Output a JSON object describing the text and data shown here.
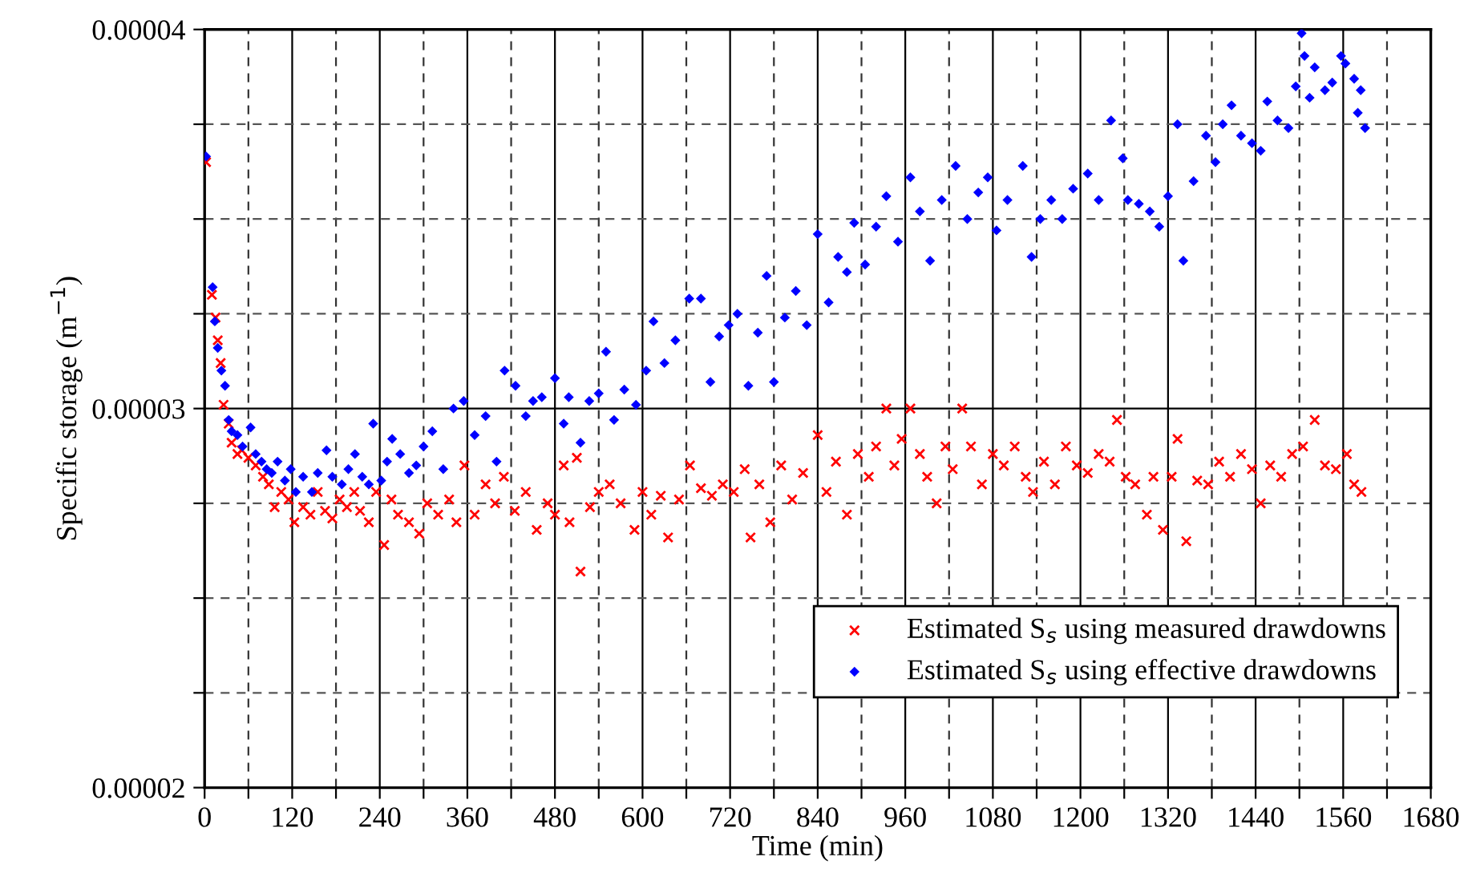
{
  "chart_data": {
    "type": "scatter",
    "xlabel": "Time (min)",
    "ylabel": "Specific storage (m$^{−1}$)",
    "xlim": [
      0,
      1680
    ],
    "ylim": [
      2e-05,
      4e-05
    ],
    "xticks": [
      0,
      {
        "value": 60,
        "label": null
      },
      120,
      {
        "value": 180,
        "label": null
      },
      240,
      {
        "value": 300,
        "label": null
      },
      360,
      {
        "value": 420,
        "label": null
      },
      480,
      {
        "value": 540,
        "label": null
      },
      600,
      {
        "value": 660,
        "label": null
      },
      720,
      {
        "value": 780,
        "label": null
      },
      840,
      {
        "value": 900,
        "label": null
      },
      960,
      {
        "value": 1020,
        "label": null
      },
      1080,
      {
        "value": 1140,
        "label": null
      },
      1200,
      {
        "value": 1260,
        "label": null
      },
      1320,
      {
        "value": 1380,
        "label": null
      },
      1440,
      {
        "value": 1500,
        "label": null
      },
      1560,
      {
        "value": 1620,
        "label": null
      },
      1680
    ],
    "yticks": [
      {
        "value": 2e-05,
        "label": "0.00002"
      },
      {
        "value": 2.25e-05,
        "label": null
      },
      {
        "value": 2.5e-05,
        "label": null
      },
      {
        "value": 2.75e-05,
        "label": null
      },
      {
        "value": 3e-05,
        "label": "0.00003"
      },
      {
        "value": 3.25e-05,
        "label": null
      },
      {
        "value": 3.5e-05,
        "label": null
      },
      {
        "value": 3.75e-05,
        "label": null
      },
      {
        "value": 4e-05,
        "label": "0.00004"
      }
    ],
    "grid": true,
    "legend": "bottom right",
    "series": [
      {
        "name": "Estimated S$_{s}$ using measured drawdowns",
        "color": "#ff0000",
        "marker": "cross",
        "x": [
          2,
          10,
          15,
          18,
          22,
          26,
          33,
          37,
          45,
          51,
          60,
          70,
          80,
          88,
          96,
          105,
          115,
          123,
          135,
          145,
          155,
          165,
          175,
          185,
          195,
          205,
          213,
          225,
          235,
          246,
          256,
          265,
          280,
          294,
          305,
          320,
          335,
          345,
          356,
          370,
          385,
          398,
          410,
          425,
          440,
          455,
          470,
          480,
          492,
          500,
          510,
          515,
          528,
          540,
          555,
          570,
          589,
          600,
          612,
          625,
          635,
          650,
          665,
          680,
          695,
          710,
          725,
          740,
          748,
          760,
          775,
          790,
          805,
          820,
          840,
          852,
          865,
          880,
          895,
          910,
          920,
          934,
          945,
          955,
          967,
          980,
          990,
          1003,
          1015,
          1025,
          1038,
          1050,
          1065,
          1080,
          1095,
          1110,
          1125,
          1135,
          1150,
          1165,
          1180,
          1195,
          1210,
          1225,
          1240,
          1250,
          1262,
          1275,
          1291,
          1300,
          1313,
          1325,
          1333,
          1345,
          1360,
          1375,
          1390,
          1405,
          1420,
          1435,
          1447,
          1460,
          1475,
          1490,
          1505,
          1521,
          1535,
          1550,
          1565,
          1575,
          1585
        ],
        "values": [
          3.65e-05,
          3.3e-05,
          3.24e-05,
          3.18e-05,
          3.12e-05,
          3.01e-05,
          2.96e-05,
          2.91e-05,
          2.88e-05,
          2.89e-05,
          2.87e-05,
          2.85e-05,
          2.82e-05,
          2.8e-05,
          2.74e-05,
          2.78e-05,
          2.76e-05,
          2.7e-05,
          2.74e-05,
          2.72e-05,
          2.78e-05,
          2.73e-05,
          2.71e-05,
          2.76e-05,
          2.74e-05,
          2.78e-05,
          2.73e-05,
          2.7e-05,
          2.78e-05,
          2.64e-05,
          2.76e-05,
          2.72e-05,
          2.7e-05,
          2.67e-05,
          2.75e-05,
          2.72e-05,
          2.76e-05,
          2.7e-05,
          2.85e-05,
          2.72e-05,
          2.8e-05,
          2.75e-05,
          2.82e-05,
          2.73e-05,
          2.78e-05,
          2.68e-05,
          2.75e-05,
          2.72e-05,
          2.85e-05,
          2.7e-05,
          2.87e-05,
          2.57e-05,
          2.74e-05,
          2.78e-05,
          2.8e-05,
          2.75e-05,
          2.68e-05,
          2.78e-05,
          2.72e-05,
          2.77e-05,
          2.66e-05,
          2.76e-05,
          2.85e-05,
          2.79e-05,
          2.77e-05,
          2.8e-05,
          2.78e-05,
          2.84e-05,
          2.66e-05,
          2.8e-05,
          2.7e-05,
          2.85e-05,
          2.76e-05,
          2.83e-05,
          2.93e-05,
          2.78e-05,
          2.86e-05,
          2.72e-05,
          2.88e-05,
          2.82e-05,
          2.9e-05,
          3e-05,
          2.85e-05,
          2.92e-05,
          3e-05,
          2.88e-05,
          2.82e-05,
          2.75e-05,
          2.9e-05,
          2.84e-05,
          3e-05,
          2.9e-05,
          2.8e-05,
          2.88e-05,
          2.85e-05,
          2.9e-05,
          2.82e-05,
          2.78e-05,
          2.86e-05,
          2.8e-05,
          2.9e-05,
          2.85e-05,
          2.83e-05,
          2.88e-05,
          2.86e-05,
          2.97e-05,
          2.82e-05,
          2.8e-05,
          2.72e-05,
          2.82e-05,
          2.68e-05,
          2.82e-05,
          2.92e-05,
          2.65e-05,
          2.81e-05,
          2.8e-05,
          2.86e-05,
          2.82e-05,
          2.88e-05,
          2.84e-05,
          2.75e-05,
          2.85e-05,
          2.82e-05,
          2.88e-05,
          2.9e-05,
          2.97e-05,
          2.85e-05,
          2.84e-05,
          2.88e-05,
          2.8e-05,
          2.78e-05
        ]
      },
      {
        "name": "Estimated S$_{s}$ using effective drawdowns",
        "color": "#0000ff",
        "marker": "diamond",
        "x": [
          2,
          11,
          14,
          18,
          23,
          28,
          33,
          37,
          45,
          52,
          63,
          70,
          78,
          85,
          92,
          100,
          110,
          118,
          125,
          135,
          147,
          155,
          167,
          175,
          188,
          197,
          206,
          216,
          225,
          231,
          242,
          250,
          257,
          268,
          280,
          290,
          300,
          312,
          327,
          341,
          355,
          370,
          385,
          400,
          411,
          426,
          440,
          450,
          462,
          480,
          492,
          499,
          515,
          527,
          540,
          550,
          561,
          575,
          591,
          605,
          615,
          630,
          645,
          664,
          680,
          693,
          705,
          718,
          730,
          745,
          758,
          770,
          780,
          795,
          810,
          825,
          840,
          855,
          868,
          880,
          890,
          905,
          920,
          934,
          950,
          967,
          980,
          994,
          1010,
          1029,
          1045,
          1060,
          1073,
          1085,
          1100,
          1121,
          1133,
          1145,
          1160,
          1175,
          1190,
          1210,
          1225,
          1242,
          1258,
          1265,
          1280,
          1295,
          1308,
          1320,
          1333,
          1341,
          1355,
          1372,
          1385,
          1395,
          1407,
          1420,
          1435,
          1447,
          1456,
          1470,
          1485,
          1495,
          1503,
          1507,
          1514,
          1521,
          1535,
          1545,
          1557,
          1563,
          1575,
          1580,
          1584,
          1590
        ],
        "values": [
          3.665e-05,
          3.32e-05,
          3.23e-05,
          3.16e-05,
          3.1e-05,
          3.06e-05,
          2.97e-05,
          2.94e-05,
          2.93e-05,
          2.9e-05,
          2.95e-05,
          2.88e-05,
          2.86e-05,
          2.84e-05,
          2.83e-05,
          2.86e-05,
          2.81e-05,
          2.84e-05,
          2.78e-05,
          2.82e-05,
          2.78e-05,
          2.83e-05,
          2.89e-05,
          2.82e-05,
          2.8e-05,
          2.84e-05,
          2.88e-05,
          2.82e-05,
          2.8e-05,
          2.96e-05,
          2.81e-05,
          2.86e-05,
          2.92e-05,
          2.88e-05,
          2.83e-05,
          2.85e-05,
          2.9e-05,
          2.94e-05,
          2.84e-05,
          3e-05,
          3.02e-05,
          2.93e-05,
          2.98e-05,
          2.86e-05,
          3.1e-05,
          3.06e-05,
          2.98e-05,
          3.02e-05,
          3.03e-05,
          3.08e-05,
          2.96e-05,
          3.03e-05,
          2.91e-05,
          3.02e-05,
          3.04e-05,
          3.15e-05,
          2.97e-05,
          3.05e-05,
          3.01e-05,
          3.1e-05,
          3.23e-05,
          3.12e-05,
          3.18e-05,
          3.29e-05,
          3.29e-05,
          3.07e-05,
          3.19e-05,
          3.22e-05,
          3.25e-05,
          3.06e-05,
          3.2e-05,
          3.35e-05,
          3.07e-05,
          3.24e-05,
          3.31e-05,
          3.22e-05,
          3.46e-05,
          3.28e-05,
          3.4e-05,
          3.36e-05,
          3.49e-05,
          3.38e-05,
          3.48e-05,
          3.56e-05,
          3.44e-05,
          3.61e-05,
          3.52e-05,
          3.39e-05,
          3.55e-05,
          3.64e-05,
          3.5e-05,
          3.57e-05,
          3.61e-05,
          3.47e-05,
          3.55e-05,
          3.64e-05,
          3.4e-05,
          3.5e-05,
          3.55e-05,
          3.5e-05,
          3.58e-05,
          3.62e-05,
          3.55e-05,
          3.76e-05,
          3.66e-05,
          3.55e-05,
          3.54e-05,
          3.52e-05,
          3.48e-05,
          3.56e-05,
          3.75e-05,
          3.39e-05,
          3.6e-05,
          3.72e-05,
          3.65e-05,
          3.75e-05,
          3.8e-05,
          3.72e-05,
          3.7e-05,
          3.68e-05,
          3.81e-05,
          3.76e-05,
          3.74e-05,
          3.85e-05,
          3.99e-05,
          3.93e-05,
          3.82e-05,
          3.9e-05,
          3.84e-05,
          3.86e-05,
          3.93e-05,
          3.91e-05,
          3.87e-05,
          3.78e-05,
          3.84e-05,
          3.74e-05
        ]
      }
    ]
  }
}
